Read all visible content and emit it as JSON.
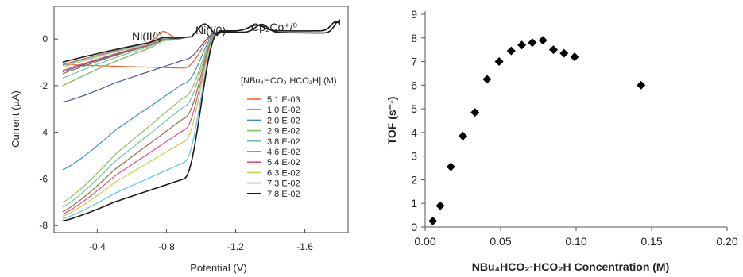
{
  "chart_data": [
    {
      "type": "line",
      "xlabel": "Potential (V)",
      "ylabel": "Current (µA)",
      "xlim": [
        -0.15,
        -1.85
      ],
      "ylim": [
        -8.3,
        1.4
      ],
      "x_reversed": true,
      "x_ticks": [
        -0.4,
        -0.8,
        -1.2,
        -1.6
      ],
      "x_tick_labels": [
        "-0.4",
        "-0.8",
        "-1.2",
        "-1.6"
      ],
      "y_ticks": [
        0,
        -2,
        -4,
        -6,
        -8
      ],
      "y_tick_labels": [
        "0",
        "-2",
        "-4",
        "-6",
        "-8"
      ],
      "grid": false,
      "legend_title": "[NBu₄HCO₂·HCO₂H] (M)",
      "legend_position": "right",
      "annotations": [
        "Ni(II/I)",
        "Ni(I/0)",
        "Cp₂Co⁺/⁰"
      ],
      "series": [
        {
          "name": "5.1 E-03",
          "color": "#f05a28",
          "peak": -1.1,
          "plateau": -1.25,
          "loop_back": 0.55
        },
        {
          "name": "1.0 E-02",
          "color": "#4a56a6",
          "peak": -2.7,
          "plateau": -0.9,
          "loop_back": 0.7
        },
        {
          "name": "2.0 E-02",
          "color": "#3a8fd0",
          "peak": -5.6,
          "plateau": -1.9,
          "loop_back": 0.75
        },
        {
          "name": "2.9 E-02",
          "color": "#8fbf5a",
          "peak": -7.0,
          "plateau": -2.5,
          "loop_back": 0.8
        },
        {
          "name": "3.8 E-02",
          "color": "#6ec4a8",
          "peak": -7.2,
          "plateau": -2.9,
          "loop_back": 0.85
        },
        {
          "name": "4.6 E-02",
          "color": "#9a6a3a",
          "peak": -7.4,
          "plateau": -3.4,
          "loop_back": 0.88
        },
        {
          "name": "5.4 E-02",
          "color": "#e0508a",
          "peak": -7.5,
          "plateau": -3.9,
          "loop_back": 0.9
        },
        {
          "name": "6.3 E-02",
          "color": "#c8d050",
          "peak": -7.6,
          "plateau": -4.4,
          "loop_back": 0.92
        },
        {
          "name": "7.3 E-02",
          "color": "#5fc0e8",
          "peak": -7.7,
          "plateau": -5.3,
          "loop_back": 0.93
        },
        {
          "name": "7.8 E-02",
          "color": "#1a1a1a",
          "peak": -7.8,
          "plateau": -6.0,
          "loop_back": 0.95
        }
      ]
    },
    {
      "type": "scatter",
      "xlabel": "NBu₄HCO₂·HCO₂H Concentration (M)",
      "ylabel": "TOF (s⁻¹)",
      "xlim": [
        0,
        0.2
      ],
      "ylim": [
        0,
        9
      ],
      "x_ticks": [
        0,
        0.05,
        0.1,
        0.15,
        0.2
      ],
      "x_tick_labels": [
        "0.00",
        "0.05",
        "0.10",
        "0.15",
        "0.20"
      ],
      "y_ticks": [
        0,
        1,
        2,
        3,
        4,
        5,
        6,
        7,
        8,
        9
      ],
      "y_tick_labels": [
        "0",
        "1",
        "2",
        "3",
        "4",
        "5",
        "6",
        "7",
        "8",
        "9"
      ],
      "grid": false,
      "marker": "diamond",
      "marker_color": "#000000",
      "points": [
        {
          "x": 0.0051,
          "y": 0.25
        },
        {
          "x": 0.01,
          "y": 0.9
        },
        {
          "x": 0.017,
          "y": 2.55
        },
        {
          "x": 0.025,
          "y": 3.85
        },
        {
          "x": 0.033,
          "y": 4.85
        },
        {
          "x": 0.041,
          "y": 6.25
        },
        {
          "x": 0.049,
          "y": 7.0
        },
        {
          "x": 0.057,
          "y": 7.45
        },
        {
          "x": 0.064,
          "y": 7.7
        },
        {
          "x": 0.071,
          "y": 7.8
        },
        {
          "x": 0.078,
          "y": 7.9
        },
        {
          "x": 0.085,
          "y": 7.5
        },
        {
          "x": 0.092,
          "y": 7.35
        },
        {
          "x": 0.099,
          "y": 7.2
        },
        {
          "x": 0.143,
          "y": 6.0
        }
      ]
    }
  ]
}
